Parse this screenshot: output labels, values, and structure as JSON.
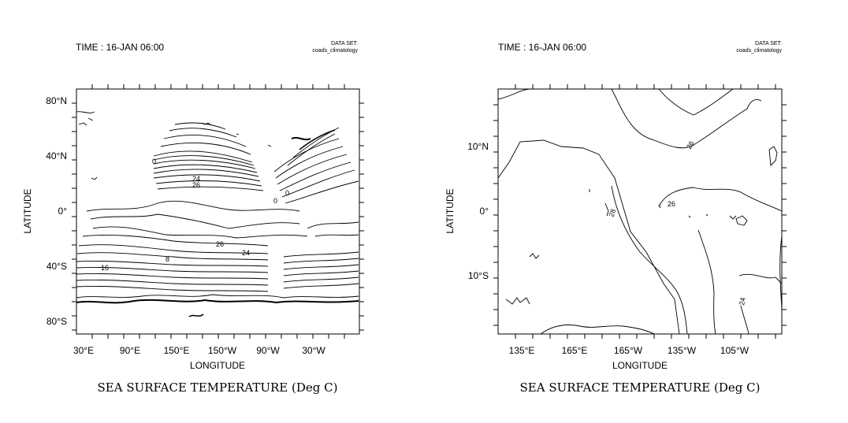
{
  "chart_data": [
    {
      "type": "contour",
      "header_time": "TIME : 16-JAN 06:00",
      "dataset_label": "DATA SET:",
      "dataset_name": "coads_climatology",
      "title": "SEA SURFACE TEMPERATURE (Deg C)",
      "xlabel": "LONGITUDE",
      "ylabel": "LATITUDE",
      "x_ticklabels": [
        "30°E",
        "90°E",
        "150°E",
        "150°W",
        "90°W",
        "30°W"
      ],
      "y_ticklabels": [
        "80°N",
        "40°N",
        "0°",
        "40°S",
        "80°S"
      ],
      "xlim": [
        20,
        380
      ],
      "ylim": [
        -89,
        89
      ],
      "contour_labels": [
        "24",
        "26",
        "26",
        "24",
        "16",
        "0",
        "0",
        "0",
        "8"
      ],
      "line_color": "#000000"
    },
    {
      "type": "contour",
      "header_time": "TIME : 16-JAN 06:00",
      "dataset_label": "DATA SET:",
      "dataset_name": "coads_climatology",
      "title": "SEA SURFACE TEMPERATURE (Deg C)",
      "xlabel": "LONGITUDE",
      "ylabel": "LATITUDE",
      "x_ticklabels": [
        "135°E",
        "165°E",
        "165°W",
        "135°W",
        "105°W"
      ],
      "y_ticklabels": [
        "10°N",
        "0°",
        "10°S"
      ],
      "xlim": [
        120,
        280
      ],
      "ylim": [
        -19,
        19
      ],
      "contour_labels": [
        "26",
        "28",
        "26",
        "24"
      ],
      "line_color": "#000000"
    }
  ]
}
